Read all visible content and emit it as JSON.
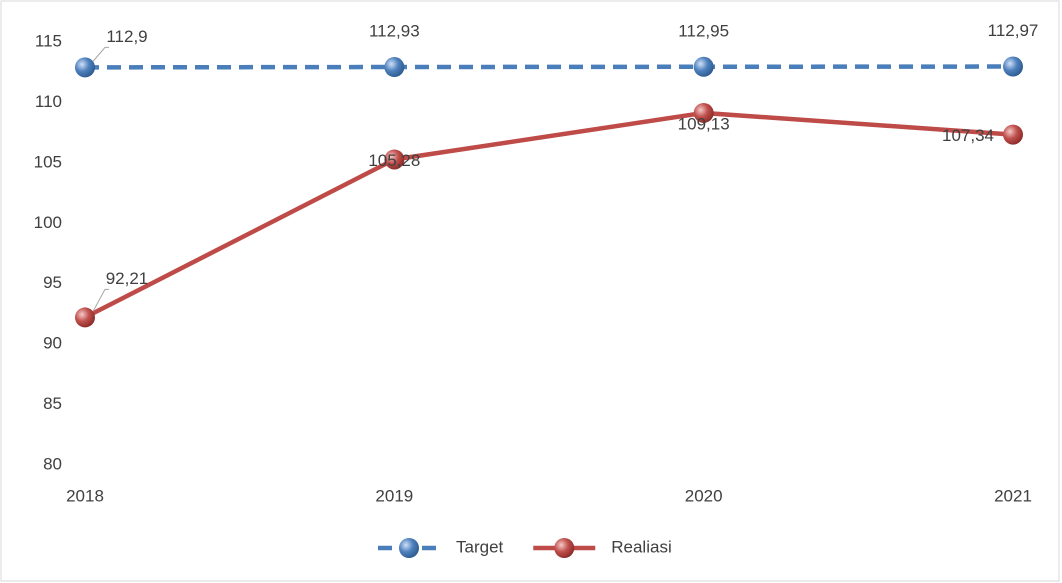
{
  "chart_data": {
    "type": "line",
    "categories": [
      "2018",
      "2019",
      "2020",
      "2021"
    ],
    "series": [
      {
        "name": "Target",
        "color": "#4a7ebb",
        "dashed": true,
        "values": [
          112.9,
          112.93,
          112.95,
          112.97
        ],
        "value_labels": [
          "112,9",
          "112,93",
          "112,95",
          "112,97"
        ]
      },
      {
        "name": "Realiasi",
        "color": "#be4b48",
        "dashed": false,
        "values": [
          92.21,
          105.28,
          109.13,
          107.34
        ],
        "value_labels": [
          "92,21",
          "105,28",
          "109,13",
          "107,34"
        ]
      }
    ],
    "ylim": [
      80,
      115
    ],
    "yticks": [
      80,
      85,
      90,
      95,
      100,
      105,
      110,
      115
    ],
    "grid": false,
    "legend": "bottom"
  }
}
